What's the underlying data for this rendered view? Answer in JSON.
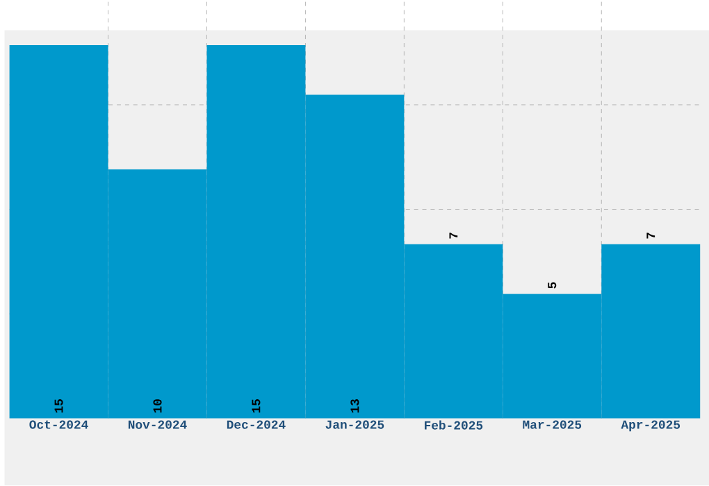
{
  "chart_data": {
    "type": "bar",
    "categories": [
      "Oct-2024",
      "Nov-2024",
      "Dec-2024",
      "Jan-2025",
      "Feb-2025",
      "Mar-2025",
      "Apr-2025"
    ],
    "values": [
      15,
      10,
      15,
      13,
      7,
      5,
      7
    ],
    "color": "#0099cc",
    "ylim": [
      0,
      16.8
    ],
    "yticks": [
      {
        "value": 4.2,
        "label": null
      },
      {
        "value": 8.4,
        "label": null
      },
      {
        "value": 12.6,
        "label": null
      }
    ],
    "grid": true,
    "data_labels": true
  }
}
